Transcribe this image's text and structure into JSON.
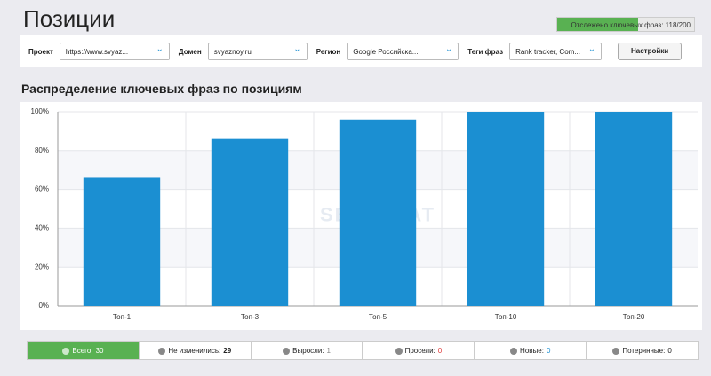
{
  "header": {
    "title": "Позиции",
    "progress": "Отслежено ключевых фраз: 118/200"
  },
  "filters": [
    {
      "label": "Проект",
      "value": "https://www.svyaz..."
    },
    {
      "label": "Домен",
      "value": "svyaznoy.ru"
    },
    {
      "label": "Регион",
      "value": "Google Российска..."
    },
    {
      "label": "Теги фраз",
      "value": "Rank tracker, Com..."
    }
  ],
  "settings_button": "Настройки",
  "chart_data": {
    "type": "bar",
    "title": "Распределение ключевых фраз по позициям",
    "watermark": "SERPSTAT",
    "categories": [
      "Топ-1",
      "Топ-3",
      "Топ-5",
      "Топ-10",
      "Топ-20"
    ],
    "values": [
      66,
      86,
      96,
      100,
      100
    ],
    "color": "#1b8fd2",
    "ylim": [
      0,
      100
    ],
    "yticks": [
      {
        "value": 0,
        "label": "0%"
      },
      {
        "value": 20,
        "label": "20%"
      },
      {
        "value": 40,
        "label": "40%"
      },
      {
        "value": 60,
        "label": "60%"
      },
      {
        "value": 80,
        "label": "80%"
      },
      {
        "value": 100,
        "label": "100%"
      }
    ],
    "grid": true
  },
  "stats": [
    {
      "label": "Всего:",
      "value": 30
    },
    {
      "label": "Не изменились:",
      "value": 29
    },
    {
      "label": "Выросли:",
      "value": 1
    },
    {
      "label": "Просели:",
      "value": 0
    },
    {
      "label": "Новые:",
      "value": 0
    },
    {
      "label": "Потерянные:",
      "value": 0
    }
  ]
}
